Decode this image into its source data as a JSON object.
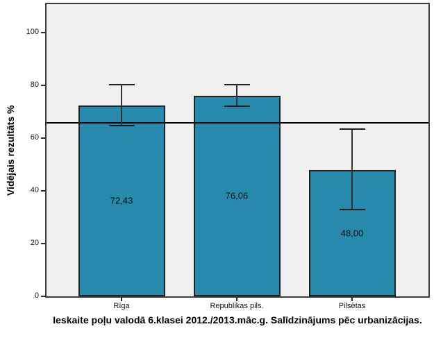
{
  "chart_data": {
    "type": "bar",
    "title": "Ieskaite poļu valodā 6.klasei 2012./2013.māc.g. Salīdzinājums pēc urbanizācijas.",
    "ylabel": "Vidējais rezultāts %",
    "xlabel": "",
    "categories": [
      "Rīga",
      "Republikas pils.",
      "Pilsētas"
    ],
    "values": [
      72.43,
      76.06,
      48.0
    ],
    "value_labels": [
      "72,43",
      "76,06",
      "48,00"
    ],
    "error_bars": [
      {
        "low": 64.8,
        "high": 80.2
      },
      {
        "low": 72.2,
        "high": 80.2
      },
      {
        "low": 33.0,
        "high": 63.3
      }
    ],
    "reference_line": 65.8,
    "yticks": [
      0,
      20,
      40,
      60,
      80,
      100
    ],
    "ylim": [
      0,
      111
    ],
    "grid": false,
    "legend": "none",
    "colors": {
      "bar_fill": "#2789ac",
      "bar_border": "#222222",
      "error_bar": "#333333",
      "reference_line": "#000000",
      "plot_background": "#f0f0f0",
      "figure_background": "#ffffff",
      "frame_border": "#3c3c3c",
      "text": "#000000"
    }
  }
}
